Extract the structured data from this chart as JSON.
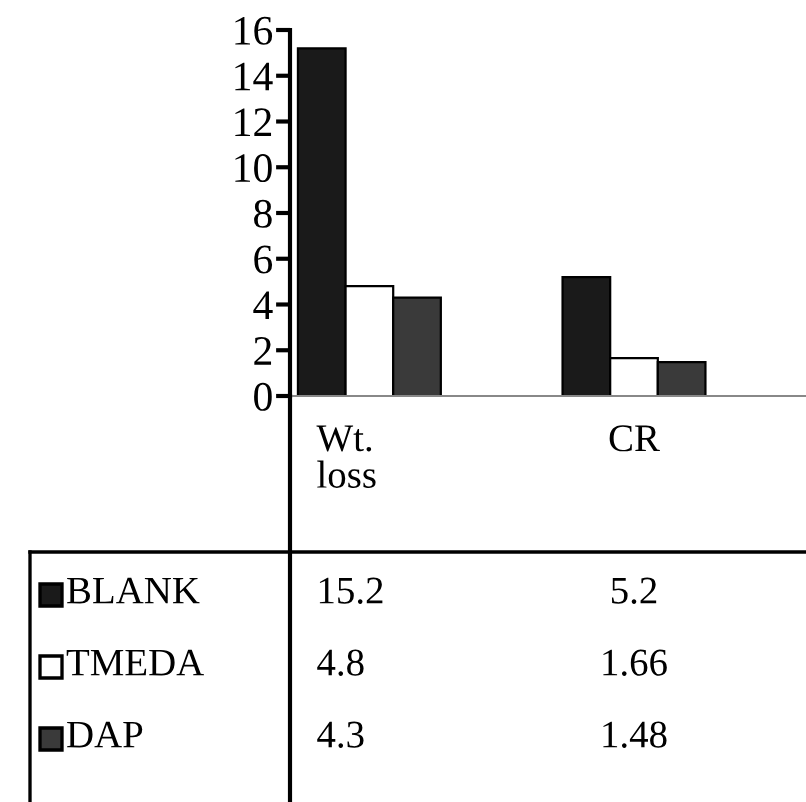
{
  "chart_data": {
    "type": "bar",
    "categories": [
      "Wt.\nloss",
      "CR"
    ],
    "series": [
      {
        "name": "BLANK",
        "color": "#1a1a1a",
        "values": [
          15.2,
          5.2
        ]
      },
      {
        "name": "TMEDA",
        "color": "#ffffff",
        "values": [
          4.8,
          1.66
        ]
      },
      {
        "name": "DAP",
        "color": "#3a3a3a",
        "values": [
          4.3,
          1.48
        ]
      }
    ],
    "ylim": [
      0,
      16
    ],
    "yticks": [
      0,
      2,
      4,
      6,
      8,
      10,
      12,
      14,
      16
    ],
    "data_labels": true,
    "legend": "bottom left",
    "grid": false
  }
}
